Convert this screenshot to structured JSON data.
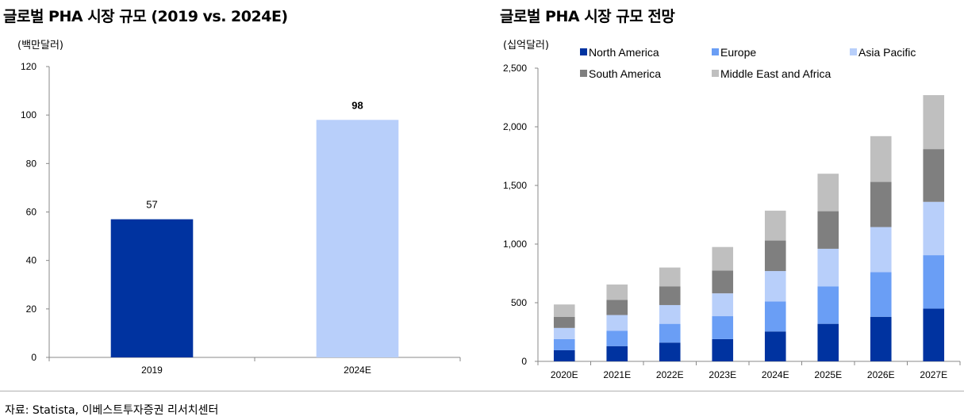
{
  "chart_data": [
    {
      "type": "bar",
      "title": "글로벌 PHA 시장 규모 (2019 vs. 2024E)",
      "ylabel": "(백만달러)",
      "xlabel": "",
      "categories": [
        "2019",
        "2024E"
      ],
      "values": [
        57,
        98
      ],
      "data_labels": [
        "57",
        "98"
      ],
      "bar_colors": [
        "#0033a0",
        "#b8cffa"
      ],
      "ylim": [
        0,
        120
      ],
      "y_ticks": [
        "0",
        "20",
        "40",
        "60",
        "80",
        "100",
        "120"
      ],
      "grid": false,
      "legend": "none"
    },
    {
      "type": "bar",
      "stacked": true,
      "title": "글로벌 PHA 시장 규모 전망",
      "ylabel": "(십억달러)",
      "xlabel": "",
      "categories": [
        "2020E",
        "2021E",
        "2022E",
        "2023E",
        "2024E",
        "2025E",
        "2026E",
        "2027E"
      ],
      "series": [
        {
          "name": "North America",
          "color": "#0033a0",
          "values": [
            95,
            130,
            160,
            190,
            255,
            320,
            380,
            450
          ]
        },
        {
          "name": "Europe",
          "color": "#6a9ef5",
          "values": [
            95,
            130,
            160,
            195,
            255,
            320,
            380,
            455
          ]
        },
        {
          "name": "Asia Pacific",
          "color": "#b8cffa",
          "values": [
            95,
            135,
            160,
            195,
            260,
            320,
            385,
            455
          ]
        },
        {
          "name": "South America",
          "color": "#7f7f7f",
          "values": [
            95,
            130,
            160,
            195,
            260,
            320,
            385,
            450
          ]
        },
        {
          "name": "Middle East and Africa",
          "color": "#bfbfbf",
          "values": [
            105,
            130,
            160,
            200,
            255,
            320,
            390,
            460
          ]
        }
      ],
      "ylim": [
        0,
        2500
      ],
      "y_ticks": [
        "0",
        "500",
        "1,000",
        "1,500",
        "2,000",
        "2,500"
      ],
      "grid": false,
      "legend": "top"
    }
  ],
  "source": "자료: Statista, 이베스트투자증권 리서치센터"
}
